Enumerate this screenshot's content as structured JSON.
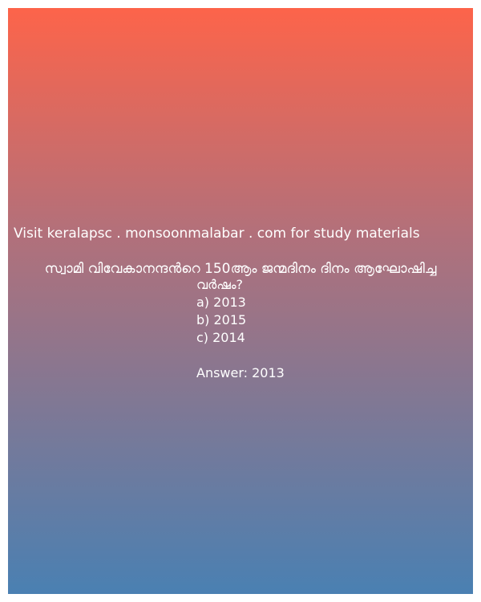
{
  "promo_text": "Visit keralapsc . monsoonmalabar . com for study materials",
  "question": {
    "line1": "സ്വാമി വിവേകാനന്ദന്‍റെ 150ആം ജന്മദിനം ദിനം ആഘോഷിച്ച",
    "line2": "വര്‍ഷം?"
  },
  "options": [
    {
      "label": "a) 2013"
    },
    {
      "label": "b) 2015"
    },
    {
      "label": "c) 2014"
    }
  ],
  "answer_text": "Answer: 2013",
  "colors": {
    "gradient_top": "#fd644a",
    "gradient_bottom": "#4a80b2",
    "text": "#ffffff",
    "frame": "#ffffff"
  }
}
